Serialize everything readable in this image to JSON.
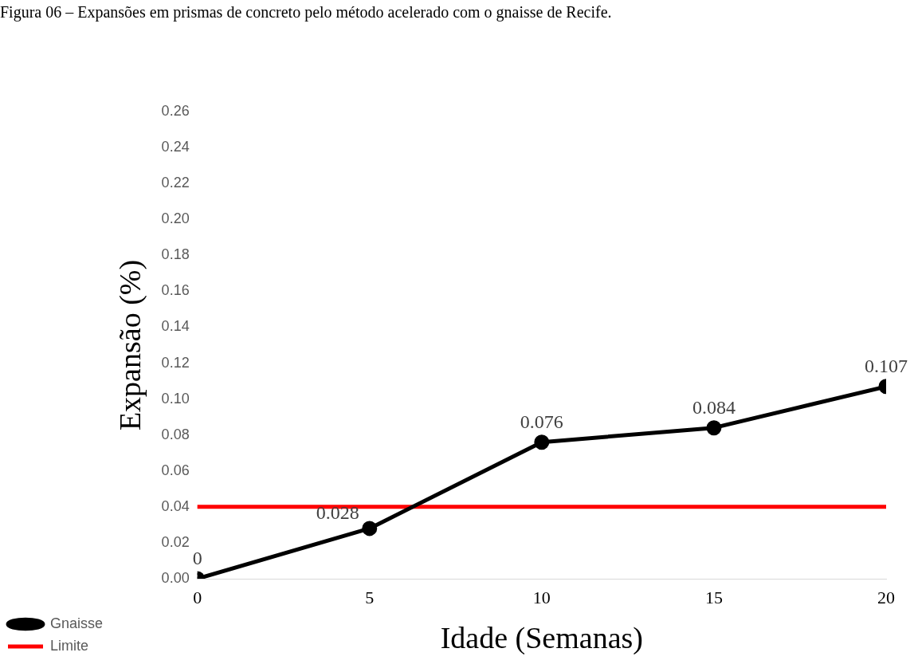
{
  "chart_data": {
    "type": "line",
    "title": "Figura 06 – Expansões em prismas de concreto pelo método acelerado com o gnaisse de Recife.",
    "xlabel": "Idade (Semanas)",
    "ylabel": "Expansão (%)",
    "x": [
      0,
      5,
      10,
      15,
      20
    ],
    "xlim": [
      0,
      20
    ],
    "xticks": [
      0,
      5,
      10,
      15,
      20
    ],
    "ylim": [
      0,
      0.26
    ],
    "yticks": [
      {
        "value": 0,
        "label": "0.00"
      },
      {
        "value": 0.02,
        "label": "0.02"
      },
      {
        "value": 0.04,
        "label": "0.04"
      },
      {
        "value": 0.06,
        "label": "0.06"
      },
      {
        "value": 0.08,
        "label": "0.08"
      },
      {
        "value": 0.1,
        "label": "0.10"
      },
      {
        "value": 0.12,
        "label": "0.12"
      },
      {
        "value": 0.14,
        "label": "0.14"
      },
      {
        "value": 0.16,
        "label": "0.16"
      },
      {
        "value": 0.18,
        "label": "0.18"
      },
      {
        "value": 0.2,
        "label": "0.20"
      },
      {
        "value": 0.22,
        "label": "0.22"
      },
      {
        "value": 0.24,
        "label": "0.24"
      },
      {
        "value": 0.26,
        "label": "0.26"
      }
    ],
    "grid": false,
    "legend": "bottom left",
    "line_style": "solid",
    "series": [
      {
        "name": "Gnaisse",
        "color": "#000000",
        "marker": "circle",
        "values": [
          0,
          0.028,
          0.076,
          0.084,
          0.107
        ],
        "value_labels": [
          "0",
          "0.028",
          "0.076",
          "0.084",
          "0.107"
        ]
      },
      {
        "name": "Limite",
        "color": "#ff0000",
        "marker": "none",
        "values": [
          0.04,
          0.04,
          0.04,
          0.04,
          0.04
        ]
      }
    ]
  }
}
